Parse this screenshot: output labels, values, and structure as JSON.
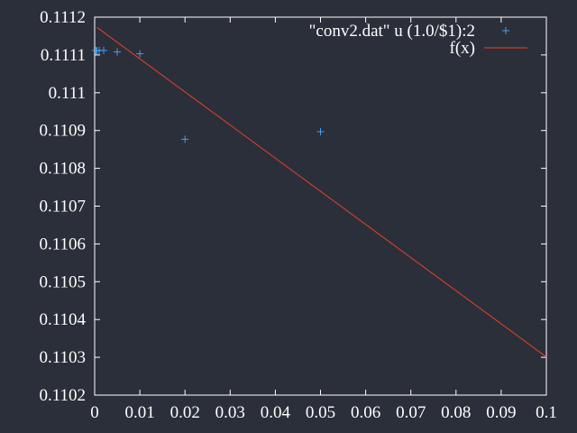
{
  "chart_data": {
    "type": "scatter",
    "title": "",
    "xlabel": "",
    "ylabel": "",
    "xlim": [
      0,
      0.1
    ],
    "ylim": [
      0.1102,
      0.1112
    ],
    "grid": false,
    "legend_position": "top-right",
    "x_ticks": [
      "0",
      "0.01",
      "0.02",
      "0.03",
      "0.04",
      "0.05",
      "0.06",
      "0.07",
      "0.08",
      "0.09",
      "0.1"
    ],
    "y_ticks": [
      "0.1102",
      "0.1103",
      "0.1104",
      "0.1105",
      "0.1106",
      "0.1107",
      "0.1108",
      "0.1109",
      "0.111",
      "0.1111",
      "0.1112"
    ],
    "series": [
      {
        "name": "\"conv2.dat\" u (1.0/$1):2",
        "style": "points",
        "marker": "+",
        "color": "#4a9fe8",
        "points": [
          {
            "x": 0.00025,
            "y": 0.111112
          },
          {
            "x": 0.0005,
            "y": 0.111111
          },
          {
            "x": 0.001,
            "y": 0.111112
          },
          {
            "x": 0.002,
            "y": 0.111112
          },
          {
            "x": 0.005,
            "y": 0.111108
          },
          {
            "x": 0.01,
            "y": 0.111103
          },
          {
            "x": 0.02,
            "y": 0.110877
          },
          {
            "x": 0.05,
            "y": 0.110897
          }
        ]
      },
      {
        "name": "f(x)",
        "style": "line",
        "color": "#e8402a",
        "points": [
          {
            "x": 0.0005,
            "y": 0.111173
          },
          {
            "x": 0.1,
            "y": 0.110301
          }
        ]
      }
    ]
  }
}
